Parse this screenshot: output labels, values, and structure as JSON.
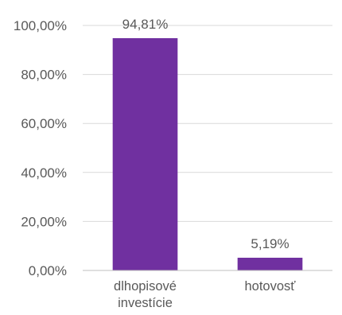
{
  "chart_data": {
    "type": "bar",
    "categories": [
      [
        "dlhopisové",
        "investície"
      ],
      [
        "hotovosť"
      ]
    ],
    "values": [
      94.81,
      5.19
    ],
    "data_labels": [
      "94,81%",
      "5,19%"
    ],
    "y_ticks": [
      "0,00%",
      "20,00%",
      "40,00%",
      "60,00%",
      "80,00%",
      "100,00%"
    ],
    "y_tick_values": [
      0,
      20,
      40,
      60,
      80,
      100
    ],
    "ylim": [
      0,
      100
    ],
    "grid": true,
    "legend": "none",
    "bar_color": "#7030a0"
  }
}
